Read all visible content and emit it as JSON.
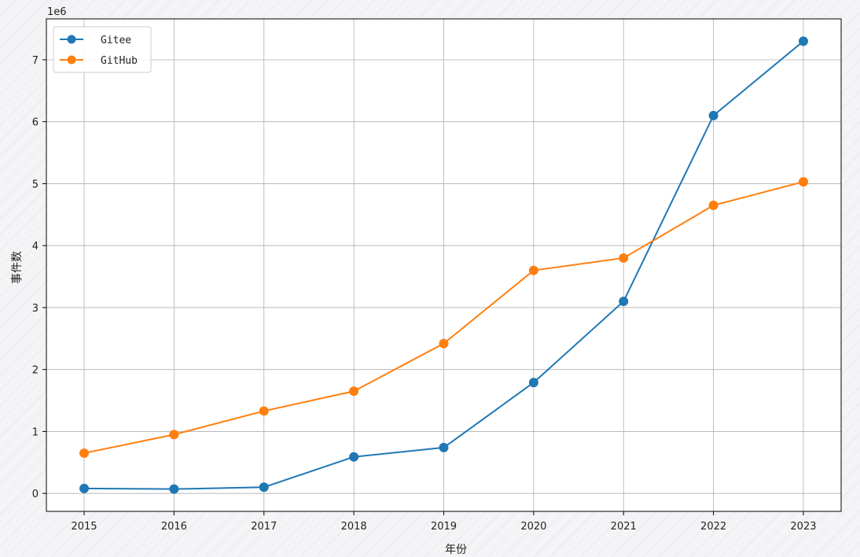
{
  "chart_data": {
    "type": "line",
    "x": [
      2015,
      2016,
      2017,
      2018,
      2019,
      2020,
      2021,
      2022,
      2023
    ],
    "x_tick_labels": [
      "2015",
      "2016",
      "2017",
      "2018",
      "2019",
      "2020",
      "2021",
      "2022",
      "2023"
    ],
    "series": [
      {
        "name": "Gitee",
        "color": "#1f77b4",
        "values": [
          80000,
          70000,
          100000,
          590000,
          740000,
          1790000,
          3100000,
          6100000,
          7300000
        ]
      },
      {
        "name": "GitHub",
        "color": "#ff7f0e",
        "values": [
          650000,
          950000,
          1330000,
          1650000,
          2420000,
          3600000,
          3800000,
          4650000,
          5030000
        ]
      }
    ],
    "xlabel": "年份",
    "ylabel": "事件数",
    "y_offset_label": "1e6",
    "y_scale": 1000000,
    "y_ticks": [
      0,
      1,
      2,
      3,
      4,
      5,
      6,
      7
    ],
    "y_tick_labels": [
      "0",
      "1",
      "2",
      "3",
      "4",
      "5",
      "6",
      "7"
    ],
    "xlim": [
      2014.58,
      2023.42
    ],
    "ylim": [
      -290000,
      7660000
    ],
    "grid": true,
    "legend_position": "top-left",
    "marker": "circle"
  }
}
